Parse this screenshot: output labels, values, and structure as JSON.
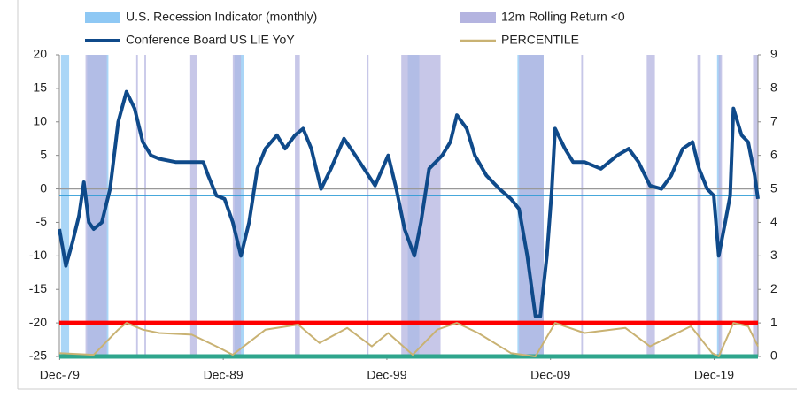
{
  "chart_data": {
    "type": "line",
    "xlim": [
      1979.9,
      2022.6
    ],
    "xticks": [
      {
        "value": 1979.92,
        "label": "Dec-79"
      },
      {
        "value": 1989.92,
        "label": "Dec-89"
      },
      {
        "value": 1999.92,
        "label": "Dec-99"
      },
      {
        "value": 2009.92,
        "label": "Dec-09"
      },
      {
        "value": 2019.92,
        "label": "Dec-19"
      }
    ],
    "ylim": [
      -25,
      20
    ],
    "yticks": [
      -25,
      -20,
      -15,
      -10,
      -5,
      0,
      5,
      10,
      15,
      20
    ],
    "y2lim": [
      0,
      9
    ],
    "y2ticks": [
      0,
      1,
      2,
      3,
      4,
      5,
      6,
      7,
      8,
      9
    ],
    "series": [
      {
        "name": "U.S. Recession Indicator (monthly)",
        "type": "bands",
        "color": "#8ec8f4",
        "ranges": [
          [
            1980.0,
            1980.5
          ],
          [
            1981.6,
            1982.9
          ],
          [
            1990.6,
            1991.2
          ],
          [
            2001.2,
            2001.9
          ],
          [
            2007.9,
            2009.5
          ],
          [
            2020.1,
            2020.3
          ]
        ]
      },
      {
        "name": "12m Rolling Return <0",
        "type": "bands",
        "color": "#b4b4e0",
        "ranges": [
          [
            1981.5,
            1982.8
          ],
          [
            1984.6,
            1984.7
          ],
          [
            1985.1,
            1985.2
          ],
          [
            1987.9,
            1988.3
          ],
          [
            1990.5,
            1991.0
          ],
          [
            1994.3,
            1994.6
          ],
          [
            1998.7,
            1998.8
          ],
          [
            2000.8,
            2003.2
          ],
          [
            2008.0,
            2009.5
          ],
          [
            2011.8,
            2011.9
          ],
          [
            2015.8,
            2016.3
          ],
          [
            2018.9,
            2019.1
          ],
          [
            2020.2,
            2020.4
          ],
          [
            2022.3,
            2022.6
          ]
        ]
      },
      {
        "name": "Conference Board US LIE YoY",
        "type": "line",
        "color": "#0f4a8a",
        "x": [
          1979.9,
          1980.3,
          1980.7,
          1981.1,
          1981.4,
          1981.7,
          1982.0,
          1982.5,
          1983.0,
          1983.5,
          1984.0,
          1984.5,
          1985.0,
          1985.5,
          1986.0,
          1987.0,
          1988.0,
          1988.7,
          1989.0,
          1989.5,
          1990.0,
          1990.5,
          1991.0,
          1991.5,
          1992.0,
          1992.5,
          1993.2,
          1993.7,
          1994.3,
          1994.8,
          1995.3,
          1995.9,
          1996.5,
          1997.3,
          1998.0,
          1999.2,
          2000.0,
          2000.5,
          2001.0,
          2001.6,
          2002.0,
          2002.5,
          2003.3,
          2003.8,
          2004.2,
          2004.8,
          2005.3,
          2006.0,
          2006.8,
          2007.5,
          2008.0,
          2008.5,
          2009.0,
          2009.3,
          2009.7,
          2010.0,
          2010.2,
          2010.8,
          2011.3,
          2012.0,
          2013.0,
          2014.0,
          2014.7,
          2015.3,
          2016.0,
          2016.7,
          2017.3,
          2018.0,
          2018.6,
          2019.0,
          2019.5,
          2019.9,
          2020.2,
          2020.6,
          2020.9,
          2021.1,
          2021.6,
          2022.0,
          2022.4,
          2022.6
        ],
        "values": [
          -6,
          -11.5,
          -8,
          -4,
          1,
          -5,
          -6,
          -5,
          0,
          10,
          14.5,
          12,
          7,
          5,
          4.5,
          4,
          4,
          4,
          2,
          -1,
          -1.5,
          -5,
          -10,
          -5,
          3,
          6,
          8,
          6,
          8,
          9,
          6,
          0,
          3,
          7.5,
          5,
          0.5,
          5,
          0,
          -6,
          -10,
          -5,
          3,
          5,
          7,
          11,
          9,
          5,
          2,
          0,
          -1.5,
          -3,
          -10,
          -19,
          -19,
          -10,
          0,
          9,
          6,
          4,
          4,
          3,
          5,
          6,
          4,
          0.5,
          0,
          2,
          6,
          7,
          3,
          0,
          -1,
          -10,
          -5,
          -1,
          12,
          8,
          7,
          2,
          -1.5
        ]
      },
      {
        "name": "PERCENTILE",
        "type": "line",
        "axis": "y2",
        "color": "#c9b273",
        "x": [
          1979.9,
          1982.0,
          1983.5,
          1984.0,
          1985.0,
          1986.0,
          1988.0,
          1989.5,
          1990.5,
          1992.5,
          1994.5,
          1995.8,
          1997.5,
          1999.0,
          2000.0,
          2001.5,
          2003.0,
          2004.2,
          2005.5,
          2007.5,
          2009.0,
          2010.2,
          2012.0,
          2014.5,
          2016.0,
          2018.5,
          2019.8,
          2020.2,
          2021.1,
          2022.0,
          2022.6
        ],
        "values": [
          0.1,
          0.05,
          0.8,
          1.0,
          0.8,
          0.7,
          0.65,
          0.3,
          0.05,
          0.8,
          0.95,
          0.4,
          0.85,
          0.3,
          0.7,
          0.05,
          0.8,
          1.0,
          0.7,
          0.1,
          0.0,
          1.0,
          0.7,
          0.85,
          0.3,
          0.9,
          0.1,
          0.0,
          1.0,
          0.9,
          0.3
        ]
      }
    ],
    "reference_lines": [
      {
        "value": 0,
        "axis": "y",
        "color": "#999999"
      },
      {
        "value": -1,
        "axis": "y",
        "color": "#2e9bd6"
      },
      {
        "value": 1,
        "axis": "y2",
        "color": "#ff0000"
      },
      {
        "value": 0,
        "axis": "y2",
        "color": "#2ea58c"
      }
    ]
  }
}
